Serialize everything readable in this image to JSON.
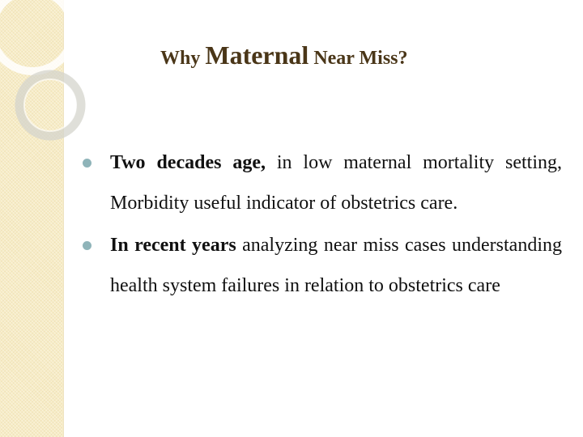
{
  "slide": {
    "title": {
      "part1": "Why ",
      "part2": "Maternal",
      "part3": " Near Miss?"
    },
    "bullets": [
      {
        "bold": "Two decades age,",
        "normal": "   in low maternal mortality setting, Morbidity useful indicator of obstetrics care."
      },
      {
        "bold": "In recent years",
        "normal": " analyzing near miss cases understanding health system failures in relation to obstetrics care"
      }
    ]
  },
  "theme": {
    "title_color": "#4a3618",
    "bullet_color": "#8fb4b9",
    "band_color": "#f7ecc6"
  }
}
